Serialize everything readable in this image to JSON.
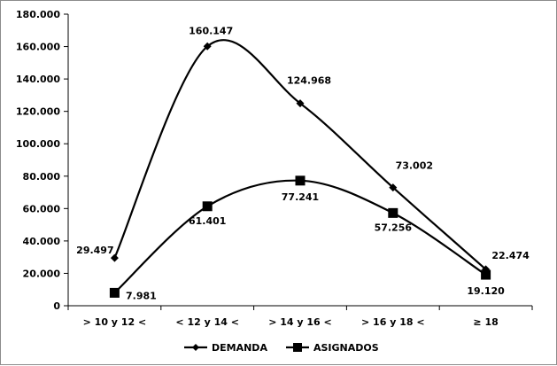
{
  "chart_data": {
    "type": "line",
    "categories": [
      "> 10 y 12 <",
      "< 12 y 14 <",
      "> 14 y 16 <",
      "> 16 y 18 <",
      "≥ 18"
    ],
    "series": [
      {
        "name": "DEMANDA",
        "values": [
          29497,
          160147,
          124968,
          73002,
          22474
        ],
        "labels": [
          "29.497",
          "160.147",
          "124.968",
          "73.002",
          "22.474"
        ],
        "marker": "diamond"
      },
      {
        "name": "ASIGNADOS",
        "values": [
          7981,
          61401,
          77241,
          57256,
          19120
        ],
        "labels": [
          "7.981",
          "61.401",
          "77.241",
          "57.256",
          "19.120"
        ],
        "marker": "square"
      }
    ],
    "yticks": [
      "0",
      "20.000",
      "40.000",
      "60.000",
      "80.000",
      "100.000",
      "120.000",
      "140.000",
      "160.000",
      "180.000"
    ],
    "ylim": [
      0,
      180000
    ],
    "title": "",
    "xlabel": "",
    "ylabel": "",
    "grid": false,
    "legend": "bottom",
    "smooth": true,
    "line_color": "#000000"
  }
}
